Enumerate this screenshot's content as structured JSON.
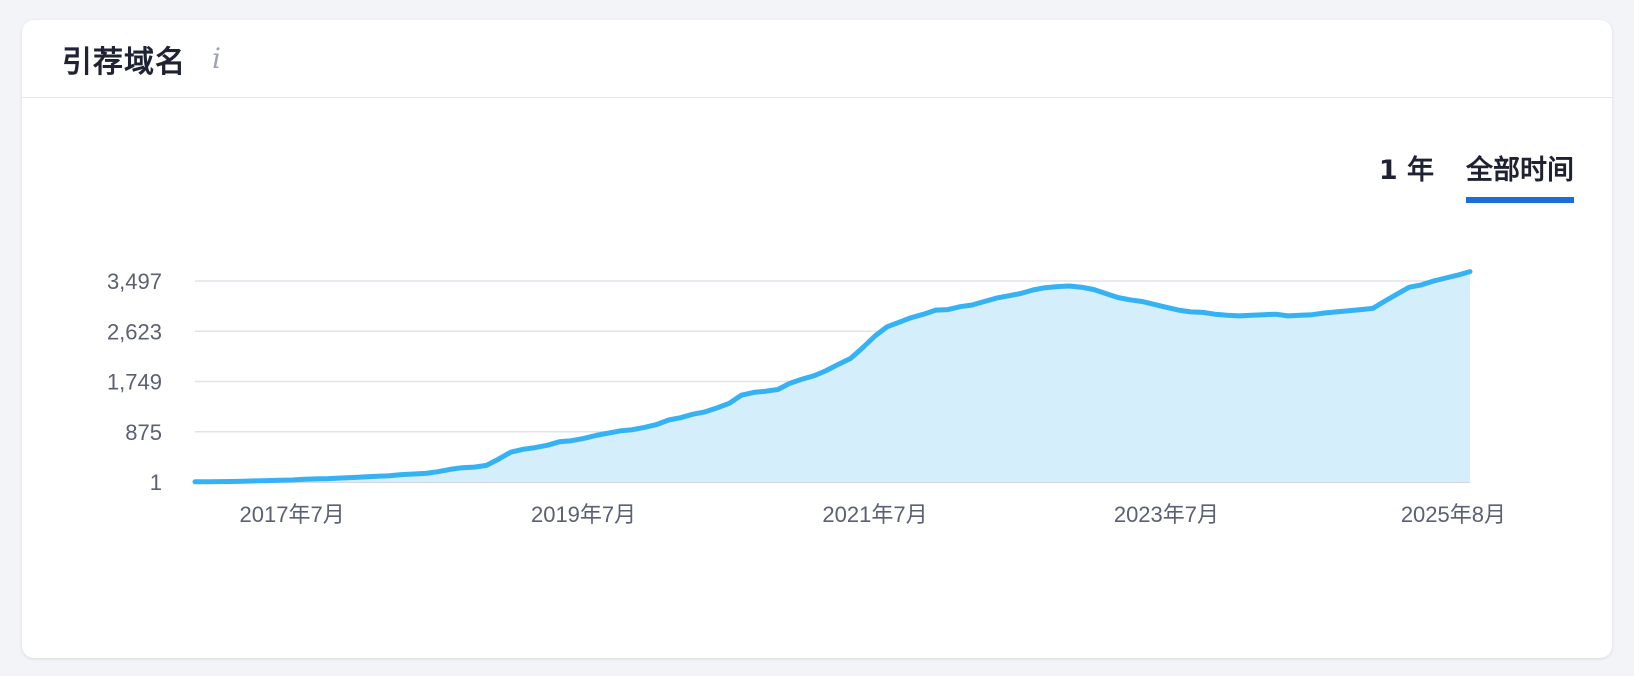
{
  "card": {
    "title": "引荐域名",
    "info_icon": "info-icon"
  },
  "range_tabs": [
    {
      "label": "1 年",
      "active": false
    },
    {
      "label": "全部时间",
      "active": true
    }
  ],
  "colors": {
    "line": "#35b2f4",
    "area": "#d4eefc",
    "grid": "#e1e3ea",
    "tab_underline": "#1a6fd4"
  },
  "chart_data": {
    "type": "area",
    "title": "",
    "xlabel": "",
    "ylabel": "",
    "y_ticks": [
      1,
      875,
      1749,
      2623,
      3497
    ],
    "y_tick_labels": [
      "1",
      "875",
      "1,749",
      "2,623",
      "3,497"
    ],
    "ylim": [
      1,
      3497
    ],
    "x_tick_labels": [
      "2017年7月",
      "2019年7月",
      "2021年7月",
      "2023年7月",
      "2025年8月"
    ],
    "x_tick_dates": [
      "2017-07",
      "2019-07",
      "2021-07",
      "2023-07",
      "2025-08"
    ],
    "grid": true,
    "legend": "none",
    "series": [
      {
        "x": [
          "2016-11",
          "2016-12",
          "2017-01",
          "2017-02",
          "2017-03",
          "2017-04",
          "2017-05",
          "2017-06",
          "2017-07",
          "2017-08",
          "2017-09",
          "2017-10",
          "2017-11",
          "2017-12",
          "2018-01",
          "2018-02",
          "2018-03",
          "2018-04",
          "2018-05",
          "2018-06",
          "2018-07",
          "2018-08",
          "2018-09",
          "2018-10",
          "2018-11",
          "2018-12",
          "2019-01",
          "2019-02",
          "2019-03",
          "2019-04",
          "2019-05",
          "2019-06",
          "2019-07",
          "2019-08",
          "2019-09",
          "2019-10",
          "2019-11",
          "2019-12",
          "2020-01",
          "2020-02",
          "2020-03",
          "2020-04",
          "2020-05",
          "2020-06",
          "2020-07",
          "2020-08",
          "2020-09",
          "2020-10",
          "2020-11",
          "2020-12",
          "2021-01",
          "2021-02",
          "2021-03",
          "2021-04",
          "2021-05",
          "2021-06",
          "2021-07",
          "2021-08",
          "2021-09",
          "2021-10",
          "2021-11",
          "2021-12",
          "2022-01",
          "2022-02",
          "2022-03",
          "2022-04",
          "2022-05",
          "2022-06",
          "2022-07",
          "2022-08",
          "2022-09",
          "2022-10",
          "2022-11",
          "2022-12",
          "2023-01",
          "2023-02",
          "2023-03",
          "2023-04",
          "2023-05",
          "2023-06",
          "2023-07",
          "2023-08",
          "2023-09",
          "2023-10",
          "2023-11",
          "2023-12",
          "2024-01",
          "2024-02",
          "2024-03",
          "2024-04",
          "2024-05",
          "2024-06",
          "2024-07",
          "2024-08",
          "2024-09",
          "2024-10",
          "2024-11",
          "2024-12",
          "2025-01",
          "2025-02",
          "2025-03",
          "2025-04",
          "2025-05",
          "2025-06",
          "2025-07",
          "2025-08"
        ],
        "values": [
          5,
          6,
          8,
          10,
          15,
          20,
          25,
          30,
          35,
          50,
          55,
          60,
          70,
          80,
          90,
          100,
          110,
          130,
          140,
          150,
          180,
          220,
          250,
          260,
          290,
          400,
          520,
          570,
          600,
          640,
          700,
          720,
          760,
          810,
          850,
          890,
          910,
          950,
          1000,
          1080,
          1120,
          1180,
          1220,
          1290,
          1370,
          1510,
          1560,
          1580,
          1610,
          1720,
          1790,
          1850,
          1940,
          2050,
          2150,
          2340,
          2540,
          2700,
          2780,
          2860,
          2920,
          2990,
          3000,
          3050,
          3080,
          3140,
          3200,
          3240,
          3280,
          3340,
          3380,
          3400,
          3410,
          3390,
          3350,
          3280,
          3210,
          3170,
          3140,
          3090,
          3040,
          2990,
          2960,
          2950,
          2920,
          2900,
          2890,
          2900,
          2910,
          2920,
          2890,
          2900,
          2910,
          2940,
          2960,
          2980,
          3000,
          3020,
          3150,
          3270,
          3390,
          3430,
          3497,
          3550,
          3600,
          3660
        ]
      }
    ]
  }
}
